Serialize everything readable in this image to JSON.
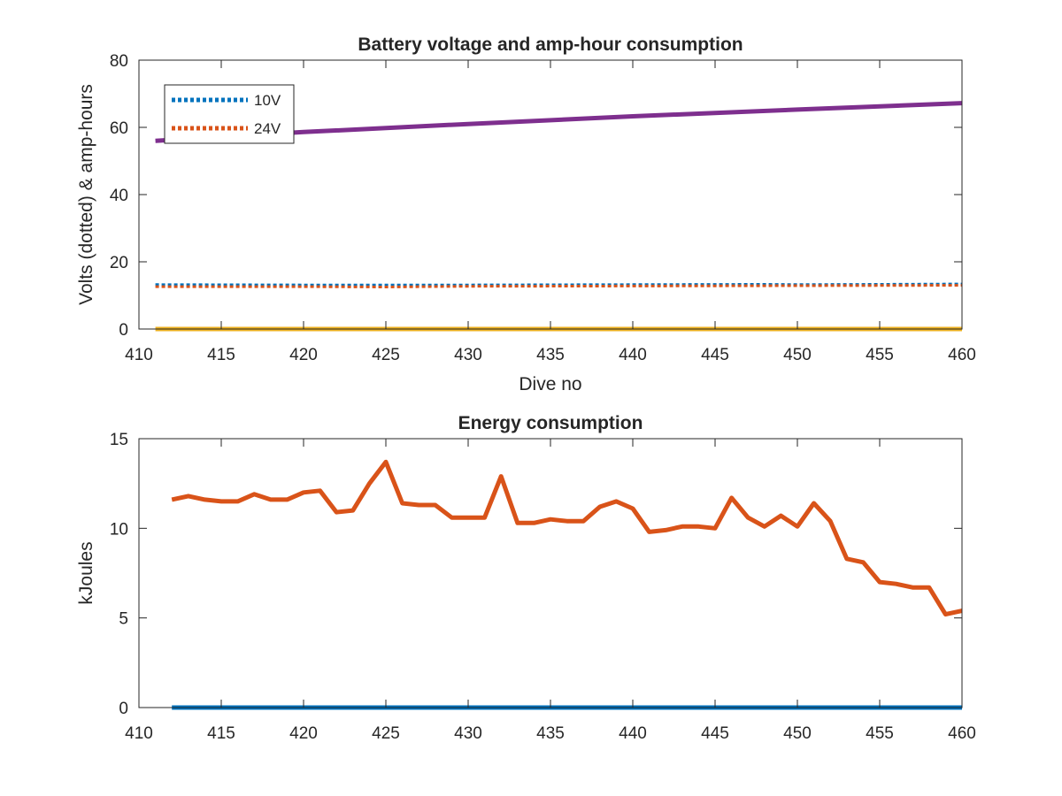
{
  "chart_data": [
    {
      "type": "line",
      "title": "Battery voltage and amp-hour consumption",
      "xlabel": "Dive no",
      "ylabel": "Volts (dotted) & amp-hours",
      "xlim": [
        410,
        460
      ],
      "ylim": [
        0,
        80
      ],
      "xticks": [
        410,
        415,
        420,
        425,
        430,
        435,
        440,
        445,
        450,
        455,
        460
      ],
      "yticks": [
        0,
        20,
        40,
        60,
        80
      ],
      "legend_position": "top-left",
      "series": [
        {
          "name": "10V",
          "style": "dotted",
          "color": "#0072BD",
          "x": [
            411,
            420,
            430,
            440,
            448,
            450,
            455,
            460
          ],
          "y": [
            13.2,
            13.1,
            13.1,
            13.2,
            13.3,
            13.2,
            13.3,
            13.4
          ]
        },
        {
          "name": "24V",
          "style": "dotted",
          "color": "#D95319",
          "x": [
            411,
            420,
            425,
            430,
            440,
            450,
            460
          ],
          "y": [
            12.6,
            12.6,
            12.5,
            12.7,
            12.8,
            12.9,
            13.0
          ]
        },
        {
          "style": "solid",
          "color": "#7E2F8E",
          "x": [
            411,
            420,
            430,
            440,
            450,
            460
          ],
          "y": [
            56,
            58.6,
            61,
            63.3,
            65.3,
            67.2
          ]
        },
        {
          "style": "solid",
          "color": "#EDB120",
          "x": [
            411,
            460
          ],
          "y": [
            0,
            0
          ]
        }
      ]
    },
    {
      "type": "line",
      "title": "Energy consumption",
      "xlabel": "",
      "ylabel": "kJoules",
      "xlim": [
        410,
        460
      ],
      "ylim": [
        0,
        15
      ],
      "xticks": [
        410,
        415,
        420,
        425,
        430,
        435,
        440,
        445,
        450,
        455,
        460
      ],
      "yticks": [
        0,
        5,
        10,
        15
      ],
      "series": [
        {
          "style": "solid",
          "color": "#0072BD",
          "x": [
            412,
            460
          ],
          "y": [
            0,
            0
          ]
        },
        {
          "style": "solid",
          "color": "#D95319",
          "x": [
            412,
            413,
            414,
            415,
            416,
            417,
            418,
            419,
            420,
            421,
            422,
            423,
            424,
            425,
            426,
            427,
            428,
            429,
            430,
            431,
            432,
            433,
            434,
            435,
            436,
            437,
            438,
            439,
            440,
            441,
            442,
            443,
            444,
            445,
            446,
            447,
            448,
            449,
            450,
            451,
            452,
            453,
            454,
            455,
            456,
            457,
            458,
            459,
            460
          ],
          "y": [
            11.6,
            11.8,
            11.6,
            11.5,
            11.5,
            11.9,
            11.6,
            11.6,
            12.0,
            12.1,
            10.9,
            11.0,
            12.5,
            13.7,
            11.4,
            11.3,
            11.3,
            10.6,
            10.6,
            10.6,
            12.9,
            10.3,
            10.3,
            10.5,
            10.4,
            10.4,
            11.2,
            11.5,
            11.1,
            9.8,
            9.9,
            10.1,
            10.1,
            10.0,
            11.7,
            10.6,
            10.1,
            10.7,
            10.1,
            11.4,
            10.4,
            8.3,
            8.1,
            7.0,
            6.9,
            6.7,
            6.7,
            5.2,
            5.4
          ]
        }
      ]
    }
  ]
}
